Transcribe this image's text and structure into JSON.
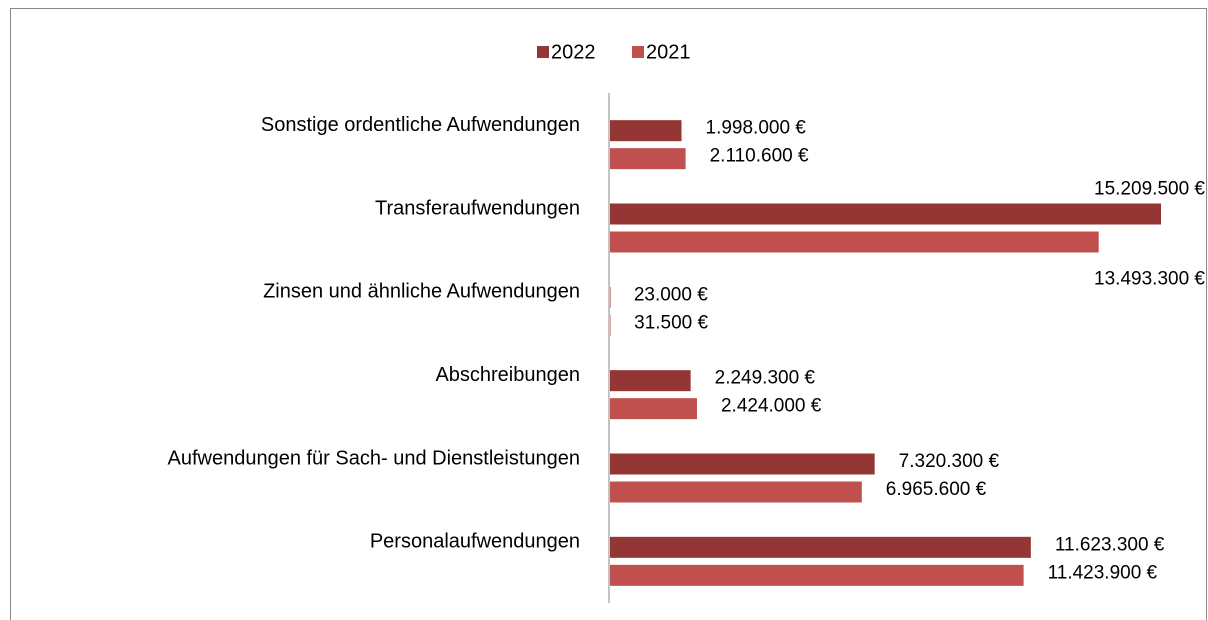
{
  "chart_data": {
    "type": "bar",
    "orientation": "horizontal",
    "categories": [
      "Sonstige ordentliche Aufwendungen",
      "Transferaufwendungen",
      "Zinsen und ähnliche Aufwendungen",
      "Abschreibungen",
      "Aufwendungen für Sach- und Dienstleistungen",
      "Personalaufwendungen"
    ],
    "series": [
      {
        "name": "2022",
        "color": "#943634",
        "values": [
          1998000,
          15209500,
          23000,
          2249300,
          7320300,
          11623300
        ],
        "value_labels": [
          "1.998.000 €",
          "15.209.500 €",
          "23.000 €",
          "2.249.300 €",
          "7.320.300 €",
          "11.623.300 €"
        ]
      },
      {
        "name": "2021",
        "color": "#c0504d",
        "values": [
          2110600,
          13493300,
          31500,
          2424000,
          6965600,
          11423900
        ],
        "value_labels": [
          "2.110.600 €",
          "13.493.300 €",
          "31.500 €",
          "2.424.000 €",
          "6.965.600 €",
          "11.423.900 €"
        ]
      }
    ],
    "legend": "top"
  }
}
